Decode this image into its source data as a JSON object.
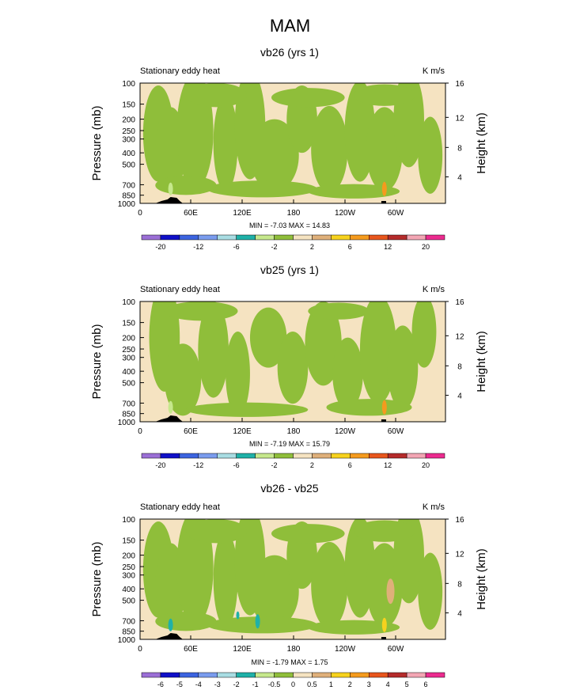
{
  "figure": {
    "title": "MAM"
  },
  "colors": {
    "tan": "#f5e3c1",
    "green": "#8fbe3a",
    "light_green": "#c6e88c",
    "teal": "#1fb1a8",
    "cyan_light": "#a9dde3",
    "orange_light": "#dfb07a",
    "yellow": "#f7d21e",
    "orange": "#f59b1e",
    "topography": "#000000"
  },
  "chart_data": [
    {
      "type": "heatmap",
      "title": "vb26 (yrs 1)",
      "left_label": "Stationary eddy heat",
      "units": "K m/s",
      "ylabel": "Pressure (mb)",
      "ylabel_right": "Height (km)",
      "x_ticks": [
        "0",
        "60E",
        "120E",
        "180",
        "120W",
        "60W"
      ],
      "y_ticks": [
        "100",
        "150",
        "200",
        "250",
        "300",
        "400",
        "500",
        "700",
        "850",
        "1000"
      ],
      "y_right_ticks": [
        "16",
        "12",
        "8",
        "4"
      ],
      "stats_text": "MIN = -7.03  MAX = 14.83",
      "min": -7.03,
      "max": 14.83,
      "colorbar_labels": [
        "-20",
        "-12",
        "-6",
        "-2",
        "2",
        "6",
        "12",
        "20"
      ],
      "colorbar_colors": [
        "#9b6fd6",
        "#1010c8",
        "#3c64e0",
        "#7a9cee",
        "#a9dde3",
        "#1fb1a8",
        "#c6e88c",
        "#8fbe3a",
        "#f5e3c1",
        "#dfb07a",
        "#f7d21e",
        "#f59b1e",
        "#e8561d",
        "#b52b2b",
        "#f3a6b4",
        "#ec2b8f"
      ]
    },
    {
      "type": "heatmap",
      "title": "vb25 (yrs 1)",
      "left_label": "Stationary eddy heat",
      "units": "K m/s",
      "ylabel": "Pressure (mb)",
      "ylabel_right": "Height (km)",
      "x_ticks": [
        "0",
        "60E",
        "120E",
        "180",
        "120W",
        "60W"
      ],
      "y_ticks": [
        "100",
        "150",
        "200",
        "250",
        "300",
        "400",
        "500",
        "700",
        "850",
        "1000"
      ],
      "y_right_ticks": [
        "16",
        "12",
        "8",
        "4"
      ],
      "stats_text": "MIN = -7.19  MAX = 15.79",
      "min": -7.19,
      "max": 15.79,
      "colorbar_labels": [
        "-20",
        "-12",
        "-6",
        "-2",
        "2",
        "6",
        "12",
        "20"
      ],
      "colorbar_colors": [
        "#9b6fd6",
        "#1010c8",
        "#3c64e0",
        "#7a9cee",
        "#a9dde3",
        "#1fb1a8",
        "#c6e88c",
        "#8fbe3a",
        "#f5e3c1",
        "#dfb07a",
        "#f7d21e",
        "#f59b1e",
        "#e8561d",
        "#b52b2b",
        "#f3a6b4",
        "#ec2b8f"
      ]
    },
    {
      "type": "heatmap",
      "title": "vb26 - vb25",
      "left_label": "Stationary eddy heat",
      "units": "K m/s",
      "ylabel": "Pressure (mb)",
      "ylabel_right": "Height (km)",
      "x_ticks": [
        "0",
        "60E",
        "120E",
        "180",
        "120W",
        "60W"
      ],
      "y_ticks": [
        "100",
        "150",
        "200",
        "250",
        "300",
        "400",
        "500",
        "700",
        "850",
        "1000"
      ],
      "y_right_ticks": [
        "16",
        "12",
        "8",
        "4"
      ],
      "stats_text": "MIN = -1.79  MAX =  1.75",
      "min": -1.79,
      "max": 1.75,
      "colorbar_labels": [
        "-6",
        "-5",
        "-4",
        "-3",
        "-2",
        "-1",
        "-0.5",
        "0",
        "0.5",
        "1",
        "2",
        "3",
        "4",
        "5",
        "6"
      ],
      "colorbar_colors": [
        "#9b6fd6",
        "#1010c8",
        "#3c64e0",
        "#7a9cee",
        "#a9dde3",
        "#1fb1a8",
        "#c6e88c",
        "#8fbe3a",
        "#f5e3c1",
        "#dfb07a",
        "#f7d21e",
        "#f59b1e",
        "#e8561d",
        "#b52b2b",
        "#f3a6b4",
        "#ec2b8f"
      ]
    }
  ]
}
